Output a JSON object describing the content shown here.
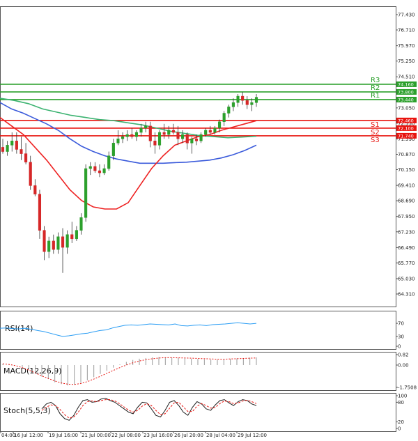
{
  "colors": {
    "up": "#2ca02c",
    "down": "#d62728",
    "resistance": "#2ca02c",
    "support": "#e8140f",
    "ma_red": "#ee2222",
    "ma_blue": "#3b5bdb",
    "ma_green": "#3cb371",
    "rsi": "#2a9df4",
    "macd_signal": "#e8140f",
    "macd_hist": "#9a9a9a",
    "stoch_k": "#1f1f1f",
    "stoch_d": "#e8140f",
    "grid": "#d9d9d9",
    "axis": "#555555"
  },
  "chart_data": {
    "type": "candlestick",
    "main": {
      "ylim": [
        64.31,
        77.43
      ],
      "y_ticks": [
        "77.430",
        "76.710",
        "75.970",
        "75.250",
        "74.510",
        "73.800",
        "73.050",
        "72.330",
        "71.590",
        "70.870",
        "70.150",
        "69.410",
        "68.690",
        "67.950",
        "67.230",
        "66.490",
        "65.770",
        "65.030",
        "64.310"
      ],
      "x_ticks": [
        "04:00",
        "16 Jul 12:00",
        "19 Jul 16:00",
        "21 Jul 00:00",
        "22 Jul 08:00",
        "23 Jul 16:00",
        "26 Jul 20:00",
        "28 Jul 04:00",
        "29 Jul 12:00"
      ],
      "candles": [
        {
          "o": 71.2,
          "h": 71.6,
          "l": 70.9,
          "c": 71.0
        },
        {
          "o": 71.0,
          "h": 71.5,
          "l": 70.8,
          "c": 71.3
        },
        {
          "o": 71.3,
          "h": 71.9,
          "l": 71.0,
          "c": 71.5
        },
        {
          "o": 71.5,
          "h": 71.9,
          "l": 70.9,
          "c": 71.1
        },
        {
          "o": 71.1,
          "h": 71.7,
          "l": 70.6,
          "c": 70.9
        },
        {
          "o": 70.9,
          "h": 71.4,
          "l": 70.4,
          "c": 70.5
        },
        {
          "o": 70.5,
          "h": 70.8,
          "l": 69.2,
          "c": 69.4
        },
        {
          "o": 69.4,
          "h": 69.7,
          "l": 68.9,
          "c": 69.0
        },
        {
          "o": 69.0,
          "h": 69.2,
          "l": 66.9,
          "c": 67.3
        },
        {
          "o": 67.3,
          "h": 67.5,
          "l": 65.9,
          "c": 66.3
        },
        {
          "o": 66.3,
          "h": 67.0,
          "l": 66.0,
          "c": 66.8
        },
        {
          "o": 66.8,
          "h": 67.1,
          "l": 66.2,
          "c": 66.4
        },
        {
          "o": 66.4,
          "h": 67.2,
          "l": 66.2,
          "c": 67.0
        },
        {
          "o": 67.0,
          "h": 67.4,
          "l": 65.3,
          "c": 66.5
        },
        {
          "o": 66.5,
          "h": 67.3,
          "l": 66.2,
          "c": 67.1
        },
        {
          "o": 67.1,
          "h": 67.7,
          "l": 66.7,
          "c": 66.9
        },
        {
          "o": 66.9,
          "h": 67.5,
          "l": 66.8,
          "c": 67.3
        },
        {
          "o": 67.3,
          "h": 68.1,
          "l": 67.1,
          "c": 67.9
        },
        {
          "o": 67.9,
          "h": 70.4,
          "l": 67.7,
          "c": 70.2
        },
        {
          "o": 70.2,
          "h": 70.5,
          "l": 69.9,
          "c": 70.3
        },
        {
          "o": 70.3,
          "h": 70.5,
          "l": 70.0,
          "c": 70.1
        },
        {
          "o": 70.1,
          "h": 70.4,
          "l": 69.8,
          "c": 70.0
        },
        {
          "o": 70.0,
          "h": 70.4,
          "l": 69.9,
          "c": 70.2
        },
        {
          "o": 70.2,
          "h": 71.0,
          "l": 70.1,
          "c": 70.8
        },
        {
          "o": 70.8,
          "h": 71.6,
          "l": 70.6,
          "c": 71.4
        },
        {
          "o": 71.4,
          "h": 72.0,
          "l": 71.3,
          "c": 71.6
        },
        {
          "o": 71.6,
          "h": 71.9,
          "l": 71.4,
          "c": 71.7
        },
        {
          "o": 71.7,
          "h": 72.0,
          "l": 71.5,
          "c": 71.8
        },
        {
          "o": 71.8,
          "h": 72.1,
          "l": 71.6,
          "c": 71.7
        },
        {
          "o": 71.7,
          "h": 72.0,
          "l": 71.5,
          "c": 71.9
        },
        {
          "o": 71.9,
          "h": 72.3,
          "l": 71.7,
          "c": 72.1
        },
        {
          "o": 72.1,
          "h": 72.4,
          "l": 71.9,
          "c": 72.2
        },
        {
          "o": 72.2,
          "h": 72.4,
          "l": 71.2,
          "c": 71.5
        },
        {
          "o": 71.5,
          "h": 71.9,
          "l": 70.9,
          "c": 71.3
        },
        {
          "o": 71.3,
          "h": 72.0,
          "l": 71.1,
          "c": 71.9
        },
        {
          "o": 71.9,
          "h": 72.3,
          "l": 71.6,
          "c": 71.8
        },
        {
          "o": 71.8,
          "h": 72.2,
          "l": 71.6,
          "c": 72.0
        },
        {
          "o": 72.0,
          "h": 72.3,
          "l": 71.8,
          "c": 71.9
        },
        {
          "o": 71.9,
          "h": 72.2,
          "l": 71.3,
          "c": 71.6
        },
        {
          "o": 71.6,
          "h": 72.0,
          "l": 71.4,
          "c": 71.8
        },
        {
          "o": 71.8,
          "h": 71.9,
          "l": 71.1,
          "c": 71.4
        },
        {
          "o": 71.4,
          "h": 71.7,
          "l": 70.9,
          "c": 71.6
        },
        {
          "o": 71.6,
          "h": 71.8,
          "l": 71.3,
          "c": 71.5
        },
        {
          "o": 71.5,
          "h": 71.9,
          "l": 71.4,
          "c": 71.8
        },
        {
          "o": 71.8,
          "h": 72.1,
          "l": 71.7,
          "c": 72.0
        },
        {
          "o": 72.0,
          "h": 72.2,
          "l": 71.8,
          "c": 71.9
        },
        {
          "o": 71.9,
          "h": 72.2,
          "l": 71.8,
          "c": 72.1
        },
        {
          "o": 72.1,
          "h": 72.5,
          "l": 71.9,
          "c": 72.4
        },
        {
          "o": 72.4,
          "h": 72.9,
          "l": 72.2,
          "c": 72.8
        },
        {
          "o": 72.8,
          "h": 73.2,
          "l": 72.6,
          "c": 73.1
        },
        {
          "o": 73.1,
          "h": 73.5,
          "l": 72.9,
          "c": 73.3
        },
        {
          "o": 73.3,
          "h": 73.7,
          "l": 73.1,
          "c": 73.6
        },
        {
          "o": 73.6,
          "h": 73.8,
          "l": 73.2,
          "c": 73.4
        },
        {
          "o": 73.4,
          "h": 73.6,
          "l": 73.0,
          "c": 73.2
        },
        {
          "o": 73.2,
          "h": 73.5,
          "l": 72.9,
          "c": 73.3
        },
        {
          "o": 73.3,
          "h": 73.7,
          "l": 73.1,
          "c": 73.55
        }
      ],
      "levels": [
        {
          "name": "R3",
          "value": 74.16,
          "kind": "resistance",
          "tag": "74.160"
        },
        {
          "name": "R2",
          "value": 73.8,
          "kind": "resistance",
          "tag": "73.800"
        },
        {
          "name": "R1",
          "value": 73.44,
          "kind": "resistance",
          "tag": "73.440"
        },
        {
          "name": "S1",
          "value": 72.46,
          "kind": "support",
          "tag": "72.460"
        },
        {
          "name": "S2",
          "value": 72.1,
          "kind": "support",
          "tag": "72.100"
        },
        {
          "name": "S3",
          "value": 71.74,
          "kind": "support",
          "tag": "71.740"
        }
      ],
      "ma_red": [
        72.6,
        72.2,
        71.8,
        71.2,
        70.6,
        69.9,
        69.2,
        68.7,
        68.4,
        68.3,
        68.3,
        68.6,
        69.4,
        70.2,
        70.8,
        71.3,
        71.5,
        71.7,
        71.8,
        72.0,
        72.15,
        72.3,
        72.45
      ],
      "ma_blue": [
        73.3,
        73.0,
        72.8,
        72.55,
        72.3,
        72.0,
        71.6,
        71.25,
        71.0,
        70.8,
        70.65,
        70.55,
        70.45,
        70.45,
        70.45,
        70.48,
        70.5,
        70.55,
        70.6,
        70.7,
        70.85,
        71.05,
        71.3
      ],
      "ma_green": [
        73.5,
        73.4,
        73.25,
        73.0,
        72.85,
        72.7,
        72.6,
        72.5,
        72.45,
        72.35,
        72.25,
        72.1,
        71.95,
        71.85,
        71.75,
        71.7,
        71.65,
        71.68,
        71.72
      ]
    },
    "rsi": {
      "label": "RSI(14)",
      "ticks": [
        "70",
        "30",
        "0"
      ],
      "ylim": [
        0,
        100
      ],
      "values": [
        55,
        56,
        54,
        53,
        55,
        52,
        48,
        45,
        40,
        35,
        30,
        32,
        35,
        38,
        40,
        44,
        48,
        50,
        56,
        60,
        64,
        65,
        64,
        66,
        68,
        67,
        66,
        65,
        68,
        63,
        62,
        64,
        65,
        63,
        66,
        67,
        68,
        70,
        72,
        70,
        68,
        70
      ]
    },
    "macd": {
      "label": "MACD(12,26,9)",
      "ticks": [
        "0.82",
        "0.00",
        "-1.7508"
      ],
      "ylim": [
        -1.75,
        0.82
      ],
      "histogram": [
        0.1,
        0.05,
        0.0,
        -0.15,
        -0.35,
        -0.6,
        -0.9,
        -1.1,
        -1.35,
        -1.5,
        -1.6,
        -1.55,
        -1.4,
        -1.2,
        -0.95,
        -0.7,
        -0.45,
        -0.2,
        0.05,
        0.25,
        0.4,
        0.5,
        0.55,
        0.6,
        0.62,
        0.6,
        0.58,
        0.56,
        0.55,
        0.5,
        0.48,
        0.45,
        0.43,
        0.42,
        0.45,
        0.5,
        0.52,
        0.55,
        0.58,
        0.6
      ],
      "signal": [
        0.1,
        0.05,
        -0.05,
        -0.2,
        -0.4,
        -0.62,
        -0.85,
        -1.05,
        -1.25,
        -1.4,
        -1.5,
        -1.52,
        -1.45,
        -1.3,
        -1.1,
        -0.88,
        -0.65,
        -0.42,
        -0.2,
        0.0,
        0.18,
        0.32,
        0.42,
        0.5,
        0.55,
        0.58,
        0.58,
        0.57,
        0.56,
        0.54,
        0.52,
        0.5,
        0.48,
        0.46,
        0.46,
        0.48,
        0.5,
        0.52,
        0.54,
        0.56
      ]
    },
    "stoch": {
      "label": "Stoch(5,5,3)",
      "ticks": [
        "100",
        "80",
        "20",
        "0"
      ],
      "ylim": [
        0,
        100
      ],
      "k": [
        60,
        75,
        80,
        70,
        45,
        30,
        25,
        40,
        65,
        85,
        88,
        80,
        82,
        90,
        92,
        85,
        80,
        70,
        60,
        50,
        45,
        65,
        80,
        78,
        60,
        40,
        35,
        55,
        80,
        85,
        70,
        50,
        40,
        65,
        82,
        75,
        60,
        55,
        72,
        85,
        88,
        78,
        70,
        82,
        88,
        85,
        75,
        70
      ],
      "d": [
        55,
        65,
        72,
        70,
        58,
        42,
        32,
        35,
        50,
        70,
        82,
        84,
        82,
        85,
        88,
        88,
        84,
        76,
        66,
        56,
        50,
        55,
        68,
        76,
        70,
        55,
        42,
        45,
        62,
        78,
        80,
        66,
        52,
        52,
        68,
        76,
        70,
        62,
        64,
        76,
        84,
        82,
        76,
        78,
        84,
        86,
        82,
        76
      ]
    }
  }
}
